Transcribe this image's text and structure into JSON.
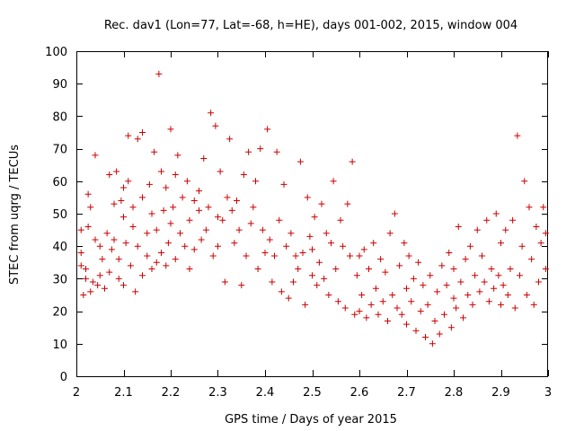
{
  "chart_data": {
    "type": "scatter",
    "title": "Rec. dav1 (Lon=77, Lat=-68, h=HE), days 001-002, 2015, window 004",
    "xlabel": "GPS time / Days of year 2015",
    "ylabel": "STEC from uqrg / TECUs",
    "xlim": [
      2,
      3
    ],
    "ylim": [
      0,
      100
    ],
    "xticks": [
      2,
      2.1,
      2.2,
      2.3,
      2.4,
      2.5,
      2.6,
      2.7,
      2.8,
      2.9,
      3
    ],
    "xtick_labels": [
      "2",
      "2.1",
      "2.2",
      "2.3",
      "2.4",
      "2.5",
      "2.6",
      "2.7",
      "2.8",
      "2.9",
      "3"
    ],
    "yticks": [
      0,
      10,
      20,
      30,
      40,
      50,
      60,
      70,
      80,
      90,
      100
    ],
    "ytick_labels": [
      "0",
      "10",
      "20",
      "30",
      "40",
      "50",
      "60",
      "70",
      "80",
      "90",
      "100"
    ],
    "marker": "plus",
    "color": "#cc0000",
    "grid": false,
    "series": [
      {
        "name": "STEC",
        "points": [
          [
            2.01,
            34
          ],
          [
            2.01,
            45
          ],
          [
            2.01,
            38
          ],
          [
            2.015,
            25
          ],
          [
            2.02,
            30
          ],
          [
            2.02,
            33
          ],
          [
            2.025,
            46
          ],
          [
            2.025,
            56
          ],
          [
            2.03,
            52
          ],
          [
            2.03,
            26
          ],
          [
            2.035,
            29
          ],
          [
            2.04,
            42
          ],
          [
            2.04,
            68
          ],
          [
            2.045,
            28
          ],
          [
            2.05,
            31
          ],
          [
            2.05,
            40
          ],
          [
            2.055,
            36
          ],
          [
            2.06,
            27
          ],
          [
            2.065,
            44
          ],
          [
            2.07,
            32
          ],
          [
            2.07,
            62
          ],
          [
            2.075,
            39
          ],
          [
            2.08,
            42
          ],
          [
            2.08,
            53
          ],
          [
            2.085,
            63
          ],
          [
            2.09,
            30
          ],
          [
            2.09,
            36
          ],
          [
            2.095,
            54
          ],
          [
            2.1,
            49
          ],
          [
            2.1,
            28
          ],
          [
            2.1,
            58
          ],
          [
            2.105,
            41
          ],
          [
            2.11,
            74
          ],
          [
            2.11,
            60
          ],
          [
            2.115,
            34
          ],
          [
            2.12,
            46
          ],
          [
            2.12,
            52
          ],
          [
            2.125,
            26
          ],
          [
            2.13,
            73
          ],
          [
            2.13,
            40
          ],
          [
            2.14,
            55
          ],
          [
            2.14,
            31
          ],
          [
            2.14,
            75
          ],
          [
            2.15,
            37
          ],
          [
            2.15,
            44
          ],
          [
            2.155,
            59
          ],
          [
            2.16,
            50
          ],
          [
            2.16,
            33
          ],
          [
            2.165,
            69
          ],
          [
            2.17,
            35
          ],
          [
            2.17,
            45
          ],
          [
            2.175,
            93
          ],
          [
            2.18,
            63
          ],
          [
            2.18,
            38
          ],
          [
            2.185,
            51
          ],
          [
            2.19,
            34
          ],
          [
            2.19,
            58
          ],
          [
            2.195,
            41
          ],
          [
            2.2,
            76
          ],
          [
            2.2,
            47
          ],
          [
            2.205,
            52
          ],
          [
            2.21,
            62
          ],
          [
            2.21,
            36
          ],
          [
            2.215,
            68
          ],
          [
            2.22,
            44
          ],
          [
            2.225,
            55
          ],
          [
            2.23,
            40
          ],
          [
            2.235,
            60
          ],
          [
            2.24,
            48
          ],
          [
            2.24,
            33
          ],
          [
            2.25,
            54
          ],
          [
            2.25,
            39
          ],
          [
            2.26,
            51
          ],
          [
            2.26,
            57
          ],
          [
            2.265,
            42
          ],
          [
            2.27,
            67
          ],
          [
            2.275,
            45
          ],
          [
            2.28,
            52
          ],
          [
            2.285,
            81
          ],
          [
            2.29,
            37
          ],
          [
            2.295,
            77
          ],
          [
            2.3,
            49
          ],
          [
            2.3,
            40
          ],
          [
            2.305,
            63
          ],
          [
            2.31,
            48
          ],
          [
            2.315,
            29
          ],
          [
            2.32,
            55
          ],
          [
            2.325,
            73
          ],
          [
            2.33,
            51
          ],
          [
            2.335,
            41
          ],
          [
            2.34,
            54
          ],
          [
            2.345,
            45
          ],
          [
            2.35,
            28
          ],
          [
            2.355,
            62
          ],
          [
            2.36,
            37
          ],
          [
            2.365,
            69
          ],
          [
            2.37,
            47
          ],
          [
            2.375,
            52
          ],
          [
            2.38,
            60
          ],
          [
            2.385,
            33
          ],
          [
            2.39,
            70
          ],
          [
            2.395,
            45
          ],
          [
            2.4,
            38
          ],
          [
            2.405,
            76
          ],
          [
            2.41,
            42
          ],
          [
            2.415,
            29
          ],
          [
            2.42,
            37
          ],
          [
            2.425,
            69
          ],
          [
            2.43,
            48
          ],
          [
            2.435,
            26
          ],
          [
            2.44,
            59
          ],
          [
            2.445,
            40
          ],
          [
            2.45,
            24
          ],
          [
            2.455,
            44
          ],
          [
            2.46,
            29
          ],
          [
            2.465,
            37
          ],
          [
            2.47,
            33
          ],
          [
            2.475,
            66
          ],
          [
            2.48,
            38
          ],
          [
            2.485,
            22
          ],
          [
            2.49,
            55
          ],
          [
            2.495,
            43
          ],
          [
            2.5,
            31
          ],
          [
            2.5,
            39
          ],
          [
            2.505,
            49
          ],
          [
            2.51,
            28
          ],
          [
            2.515,
            35
          ],
          [
            2.52,
            53
          ],
          [
            2.525,
            30
          ],
          [
            2.53,
            44
          ],
          [
            2.535,
            25
          ],
          [
            2.54,
            41
          ],
          [
            2.545,
            60
          ],
          [
            2.55,
            33
          ],
          [
            2.555,
            23
          ],
          [
            2.56,
            48
          ],
          [
            2.565,
            40
          ],
          [
            2.57,
            21
          ],
          [
            2.575,
            53
          ],
          [
            2.58,
            37
          ],
          [
            2.585,
            66
          ],
          [
            2.59,
            19
          ],
          [
            2.595,
            31
          ],
          [
            2.6,
            37
          ],
          [
            2.6,
            20
          ],
          [
            2.605,
            25
          ],
          [
            2.61,
            39
          ],
          [
            2.615,
            18
          ],
          [
            2.62,
            33
          ],
          [
            2.625,
            22
          ],
          [
            2.63,
            41
          ],
          [
            2.635,
            27
          ],
          [
            2.64,
            19
          ],
          [
            2.645,
            36
          ],
          [
            2.65,
            23
          ],
          [
            2.655,
            32
          ],
          [
            2.66,
            17
          ],
          [
            2.665,
            44
          ],
          [
            2.67,
            25
          ],
          [
            2.675,
            50
          ],
          [
            2.68,
            21
          ],
          [
            2.685,
            34
          ],
          [
            2.69,
            19
          ],
          [
            2.695,
            41
          ],
          [
            2.7,
            27
          ],
          [
            2.7,
            16
          ],
          [
            2.705,
            37
          ],
          [
            2.71,
            23
          ],
          [
            2.715,
            30
          ],
          [
            2.72,
            14
          ],
          [
            2.725,
            35
          ],
          [
            2.73,
            20
          ],
          [
            2.735,
            28
          ],
          [
            2.74,
            12
          ],
          [
            2.745,
            22
          ],
          [
            2.75,
            31
          ],
          [
            2.755,
            10
          ],
          [
            2.76,
            17
          ],
          [
            2.765,
            26
          ],
          [
            2.77,
            13
          ],
          [
            2.775,
            34
          ],
          [
            2.78,
            19
          ],
          [
            2.785,
            28
          ],
          [
            2.79,
            38
          ],
          [
            2.795,
            15
          ],
          [
            2.8,
            24
          ],
          [
            2.8,
            33
          ],
          [
            2.805,
            21
          ],
          [
            2.81,
            46
          ],
          [
            2.815,
            29
          ],
          [
            2.82,
            18
          ],
          [
            2.825,
            36
          ],
          [
            2.83,
            25
          ],
          [
            2.835,
            40
          ],
          [
            2.84,
            22
          ],
          [
            2.845,
            31
          ],
          [
            2.85,
            45
          ],
          [
            2.855,
            26
          ],
          [
            2.86,
            37
          ],
          [
            2.865,
            29
          ],
          [
            2.87,
            48
          ],
          [
            2.875,
            23
          ],
          [
            2.88,
            33
          ],
          [
            2.885,
            27
          ],
          [
            2.89,
            50
          ],
          [
            2.895,
            31
          ],
          [
            2.9,
            22
          ],
          [
            2.9,
            41
          ],
          [
            2.905,
            28
          ],
          [
            2.91,
            45
          ],
          [
            2.915,
            25
          ],
          [
            2.92,
            33
          ],
          [
            2.925,
            48
          ],
          [
            2.93,
            21
          ],
          [
            2.935,
            74
          ],
          [
            2.94,
            31
          ],
          [
            2.945,
            40
          ],
          [
            2.95,
            60
          ],
          [
            2.955,
            25
          ],
          [
            2.96,
            52
          ],
          [
            2.965,
            36
          ],
          [
            2.97,
            22
          ],
          [
            2.975,
            46
          ],
          [
            2.98,
            29
          ],
          [
            2.985,
            41
          ],
          [
            2.99,
            52
          ],
          [
            2.995,
            33
          ],
          [
            2.995,
            44
          ]
        ]
      }
    ]
  }
}
